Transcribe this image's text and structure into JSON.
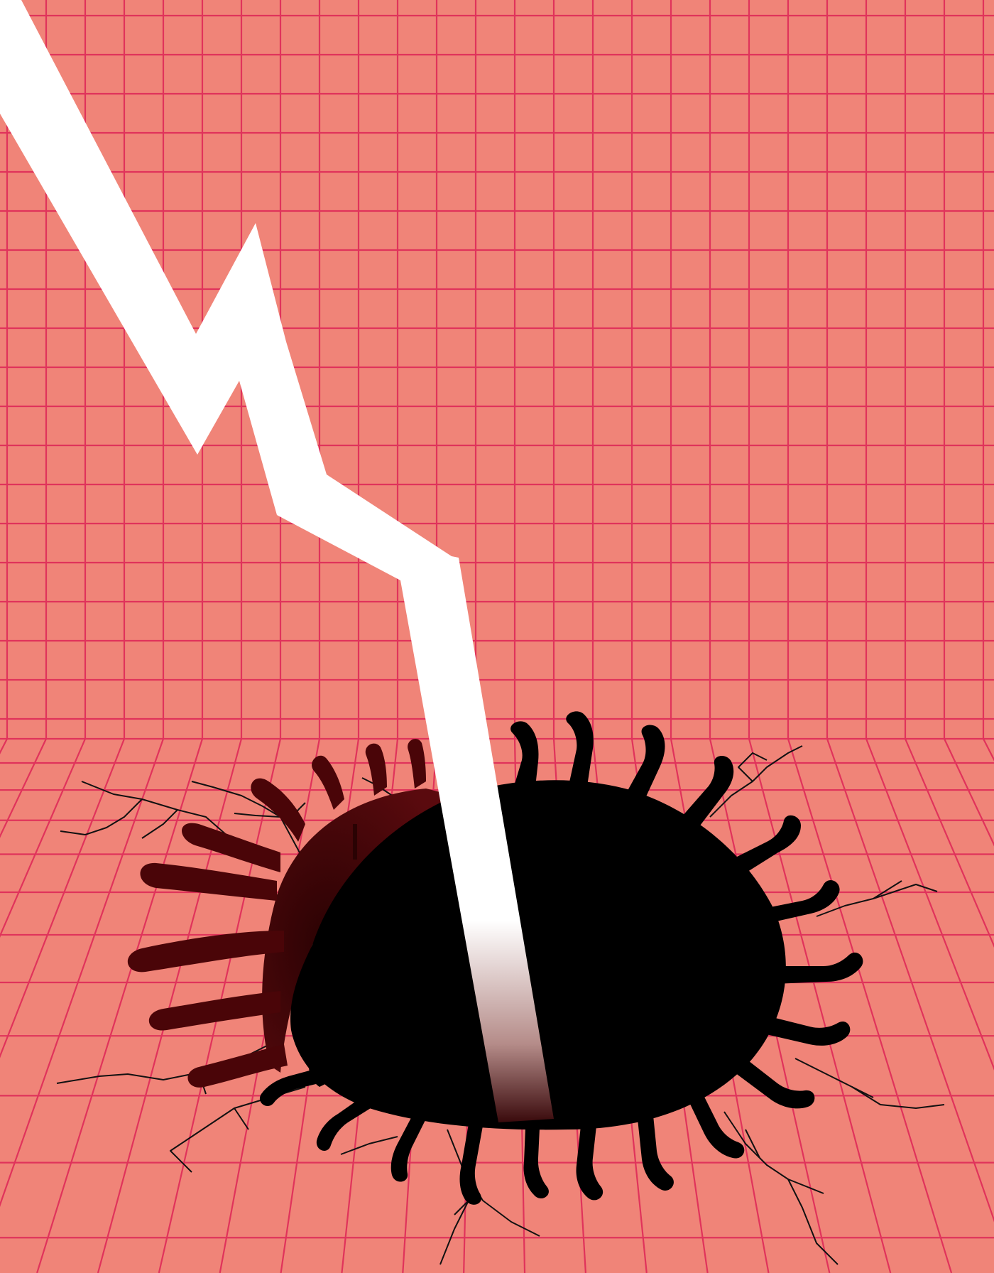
{
  "scene": {
    "subject": "illustration",
    "colors": {
      "background": "#f08478",
      "grid": "#e0335b",
      "arrow": "#ffffff",
      "hole": "#000000",
      "hole_inner_wall": "#4a0508",
      "cracks": "#111111"
    },
    "icons": [
      "downward-trend-arrow-icon",
      "virus-shaped-hole-icon"
    ]
  }
}
